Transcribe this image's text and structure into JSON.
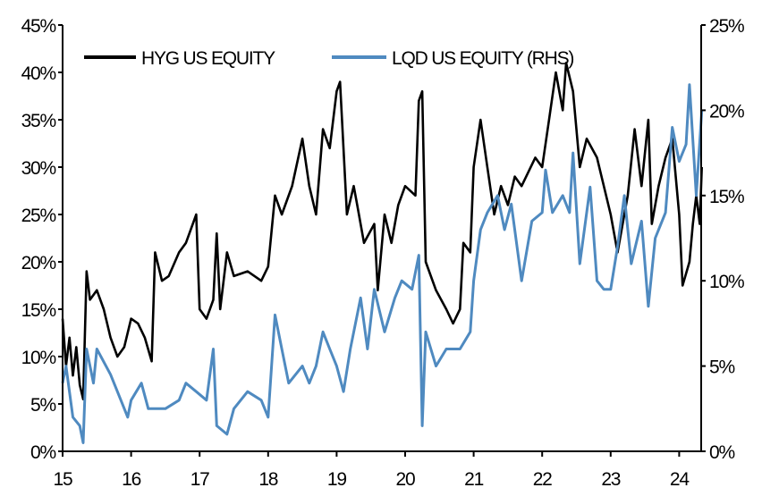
{
  "chart_data": {
    "type": "line",
    "title": "",
    "xlabel": "",
    "ylabel": "",
    "y2label": "",
    "x_ticks": [
      "15",
      "16",
      "17",
      "18",
      "19",
      "20",
      "21",
      "22",
      "23",
      "24"
    ],
    "x_tick_values": [
      15,
      16,
      17,
      18,
      19,
      20,
      21,
      22,
      23,
      24
    ],
    "xlim": [
      15,
      24.33
    ],
    "ylim": [
      0,
      45
    ],
    "y2lim": [
      0,
      25
    ],
    "y_ticks": [
      "0%",
      "5%",
      "10%",
      "15%",
      "20%",
      "25%",
      "30%",
      "35%",
      "40%",
      "45%"
    ],
    "y_tick_values": [
      0,
      5,
      10,
      15,
      20,
      25,
      30,
      35,
      40,
      45
    ],
    "y2_ticks": [
      "0%",
      "5%",
      "10%",
      "15%",
      "20%",
      "25%"
    ],
    "y2_tick_values": [
      0,
      5,
      10,
      15,
      20,
      25
    ],
    "grid": false,
    "legend_placement": "top",
    "series": [
      {
        "name": "HYG US EQUITY",
        "axis": "left",
        "color": "#000000",
        "x": [
          15.0,
          15.05,
          15.1,
          15.15,
          15.2,
          15.25,
          15.3,
          15.35,
          15.4,
          15.5,
          15.6,
          15.7,
          15.8,
          15.9,
          16.0,
          16.1,
          16.2,
          16.3,
          16.35,
          16.45,
          16.55,
          16.7,
          16.8,
          16.95,
          17.0,
          17.1,
          17.2,
          17.25,
          17.3,
          17.4,
          17.5,
          17.7,
          17.9,
          18.0,
          18.1,
          18.2,
          18.35,
          18.5,
          18.6,
          18.7,
          18.8,
          18.9,
          19.0,
          19.05,
          19.15,
          19.25,
          19.3,
          19.4,
          19.55,
          19.6,
          19.7,
          19.8,
          19.9,
          20.0,
          20.15,
          20.2,
          20.25,
          20.3,
          20.45,
          20.6,
          20.7,
          20.8,
          20.85,
          20.95,
          21.0,
          21.1,
          21.2,
          21.3,
          21.4,
          21.5,
          21.6,
          21.7,
          21.9,
          22.0,
          22.1,
          22.2,
          22.3,
          22.35,
          22.45,
          22.55,
          22.65,
          22.8,
          23.0,
          23.1,
          23.25,
          23.35,
          23.45,
          23.55,
          23.6,
          23.7,
          23.8,
          23.9,
          24.0,
          24.05,
          24.15,
          24.2,
          24.25,
          24.3,
          24.33
        ],
        "y": [
          14,
          9,
          12,
          8,
          11,
          7,
          5.5,
          19,
          16,
          17,
          15,
          12,
          10,
          11,
          14,
          13.5,
          12,
          9.5,
          21,
          18,
          18.5,
          21,
          22,
          25,
          15,
          14,
          16,
          23,
          15,
          21,
          18.5,
          19,
          18,
          19.5,
          27,
          25,
          28,
          33,
          28,
          25,
          34,
          32,
          38,
          39,
          25,
          28,
          26,
          22,
          24,
          17,
          25,
          22,
          26,
          28,
          27,
          37,
          38,
          20,
          17,
          15,
          13.5,
          15,
          22,
          21,
          30,
          35,
          30,
          25,
          28,
          26,
          29,
          28,
          31,
          30,
          35,
          40,
          36,
          41,
          38,
          30,
          33,
          31,
          25,
          21,
          27,
          34,
          28,
          35,
          24,
          28,
          31,
          33,
          25,
          17.5,
          20,
          24,
          27,
          24,
          30
        ]
      },
      {
        "name": "LQD US EQUITY (RHS)",
        "axis": "right",
        "color": "#4F8AC0",
        "x": [
          15.0,
          15.05,
          15.15,
          15.25,
          15.3,
          15.35,
          15.45,
          15.5,
          15.7,
          15.8,
          15.95,
          16.0,
          16.15,
          16.25,
          16.5,
          16.7,
          16.8,
          16.95,
          17.1,
          17.2,
          17.25,
          17.4,
          17.5,
          17.7,
          17.9,
          18.0,
          18.1,
          18.2,
          18.3,
          18.5,
          18.6,
          18.7,
          18.8,
          18.9,
          19.0,
          19.1,
          19.2,
          19.35,
          19.45,
          19.55,
          19.7,
          19.85,
          19.95,
          20.1,
          20.2,
          20.25,
          20.3,
          20.45,
          20.6,
          20.8,
          20.95,
          21.0,
          21.1,
          21.2,
          21.35,
          21.45,
          21.55,
          21.7,
          21.85,
          22.0,
          22.05,
          22.15,
          22.3,
          22.4,
          22.45,
          22.55,
          22.7,
          22.8,
          22.9,
          23.0,
          23.1,
          23.2,
          23.3,
          23.45,
          23.55,
          23.65,
          23.8,
          23.9,
          24.0,
          24.1,
          24.15,
          24.25,
          24.33
        ],
        "y": [
          4,
          5,
          2,
          1.5,
          0.5,
          6,
          4,
          6,
          4.5,
          3.5,
          2,
          3,
          4,
          2.5,
          2.5,
          3,
          4,
          3.5,
          3,
          6,
          1.5,
          1,
          2.5,
          3.5,
          3,
          2,
          8,
          6,
          4,
          5,
          4,
          5,
          7,
          6,
          5,
          3.5,
          6,
          9,
          6,
          9.5,
          7,
          9,
          10,
          9.5,
          11.5,
          1.5,
          7,
          5,
          6,
          6,
          7,
          10,
          13,
          14,
          15,
          13,
          14.5,
          10,
          13.5,
          14,
          16.5,
          14,
          15,
          14,
          17.5,
          11,
          15.5,
          10,
          9.5,
          9.5,
          12,
          15,
          11,
          13.5,
          8.5,
          12.5,
          14,
          19,
          17,
          18,
          21.5,
          15,
          20
        ]
      }
    ]
  }
}
